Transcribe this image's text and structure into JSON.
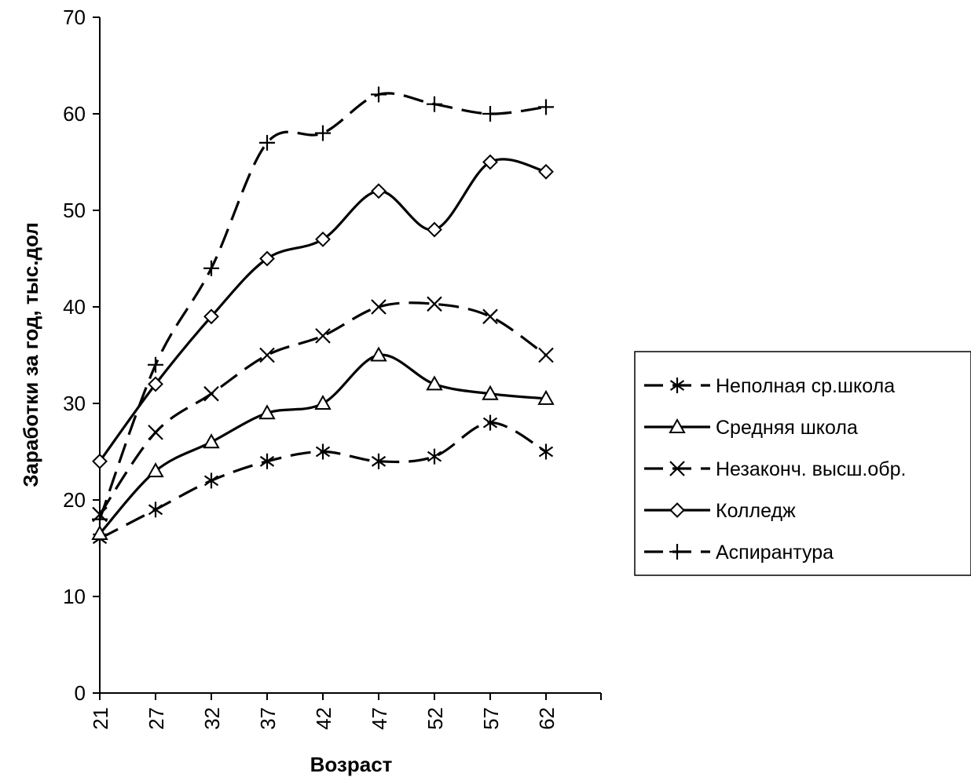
{
  "chart_data": {
    "type": "line",
    "title": "",
    "xlabel": "Возраст",
    "ylabel": "Заработки за год, тыс.дол",
    "x": [
      "21",
      "27",
      "32",
      "37",
      "42",
      "47",
      "52",
      "57",
      "62"
    ],
    "ylim": [
      0,
      70
    ],
    "yticks": [
      "0",
      "10",
      "20",
      "30",
      "40",
      "50",
      "60",
      "70"
    ],
    "grid": false,
    "legend_position": "right",
    "series": [
      {
        "name": "Неполная ср.школа",
        "marker": "asterisk",
        "line": "dashed",
        "values": [
          16,
          19,
          22,
          24,
          25,
          24,
          24.5,
          28,
          25
        ]
      },
      {
        "name": "Средняя школа",
        "marker": "triangle",
        "line": "solid",
        "values": [
          16.5,
          23,
          26,
          29,
          30,
          35,
          32,
          31,
          30.5
        ]
      },
      {
        "name": "Незаконч. высш.обр.",
        "marker": "x",
        "line": "dashed",
        "values": [
          18.5,
          27,
          31,
          35,
          37,
          40,
          40.3,
          39,
          35
        ]
      },
      {
        "name": "Колледж",
        "marker": "diamond",
        "line": "solid",
        "values": [
          24,
          32,
          39,
          45,
          47,
          52,
          48,
          55,
          54
        ]
      },
      {
        "name": "Аспирантура",
        "marker": "plus",
        "line": "dashed",
        "values": [
          18,
          34,
          44,
          57,
          58,
          62,
          61,
          60,
          60.7
        ]
      }
    ]
  }
}
